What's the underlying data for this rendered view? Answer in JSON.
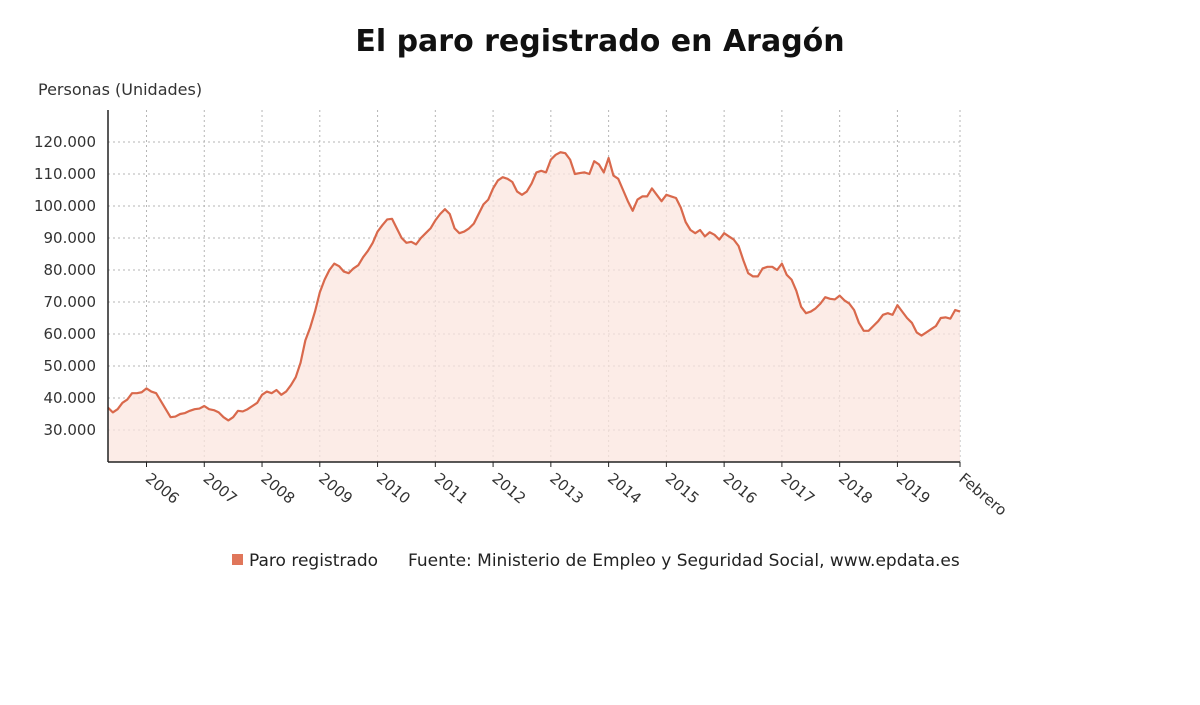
{
  "title": "El paro registrado en Aragón",
  "y_unit_label": "Personas (Unidades)",
  "legend": {
    "series_label": "Paro registrado",
    "source": "Fuente: Ministerio de Empleo y Seguridad Social, www.epdata.es"
  },
  "colors": {
    "line": "#d9694c",
    "fill": "#fbe6df",
    "grid": "#b5b5b5",
    "axis": "#222222"
  },
  "chart_data": {
    "type": "area",
    "title": "El paro registrado en Aragón",
    "ylabel": "Personas (Unidades)",
    "ylim": [
      20000,
      130000
    ],
    "grid": true,
    "y_ticks": [
      30000,
      40000,
      50000,
      60000,
      70000,
      80000,
      90000,
      100000,
      110000,
      120000
    ],
    "y_tick_labels": [
      "30.000",
      "40.000",
      "50.000",
      "60.000",
      "70.000",
      "80.000",
      "90.000",
      "100.000",
      "110.000",
      "120.000"
    ],
    "x_tick_labels": [
      "2006",
      "2007",
      "2008",
      "2009",
      "2010",
      "2011",
      "2012",
      "2013",
      "2014",
      "2015",
      "2016",
      "2017",
      "2018",
      "2019",
      "Febrero"
    ],
    "x_start": "2005-05",
    "x_end": "2020-02",
    "series": [
      {
        "name": "Paro registrado",
        "values": [
          37000,
          35500,
          36500,
          38500,
          39500,
          41500,
          41500,
          41800,
          43000,
          42000,
          41500,
          39000,
          36500,
          34000,
          34200,
          35000,
          35300,
          36000,
          36500,
          36700,
          37500,
          36500,
          36200,
          35500,
          34000,
          33000,
          34000,
          36000,
          35800,
          36500,
          37500,
          38500,
          41000,
          42000,
          41500,
          42500,
          41000,
          42000,
          44000,
          46500,
          51000,
          58000,
          62000,
          67000,
          73000,
          77000,
          80000,
          82000,
          81200,
          79500,
          79000,
          80500,
          81500,
          84000,
          86000,
          88500,
          92000,
          94000,
          95800,
          96000,
          93000,
          90000,
          88500,
          88800,
          88000,
          90000,
          91500,
          93000,
          95500,
          97500,
          99000,
          97500,
          93000,
          91500,
          92000,
          93000,
          94500,
          97500,
          100500,
          102000,
          105500,
          108000,
          109000,
          108500,
          107500,
          104500,
          103500,
          104500,
          107000,
          110500,
          111000,
          110500,
          114500,
          116000,
          116800,
          116500,
          114500,
          110000,
          110300,
          110500,
          110000,
          114000,
          113000,
          110500,
          115000,
          109500,
          108500,
          105000,
          101500,
          98500,
          102000,
          103000,
          103000,
          105500,
          103500,
          101500,
          103500,
          103000,
          102500,
          99500,
          95000,
          92500,
          91500,
          92500,
          90500,
          91800,
          91000,
          89500,
          91500,
          90500,
          89500,
          87500,
          83000,
          79000,
          78000,
          78000,
          80500,
          81000,
          81000,
          80000,
          82000,
          78500,
          77000,
          73500,
          68500,
          66500,
          67000,
          68000,
          69500,
          71500,
          71000,
          70800,
          72000,
          70500,
          69500,
          67500,
          63500,
          61000,
          61000,
          62500,
          64000,
          66000,
          66500,
          66000,
          69000,
          67000,
          65000,
          63500,
          60500,
          59500,
          60500,
          61500,
          62500,
          65000,
          65200,
          64800,
          67500,
          67000
        ]
      }
    ]
  }
}
